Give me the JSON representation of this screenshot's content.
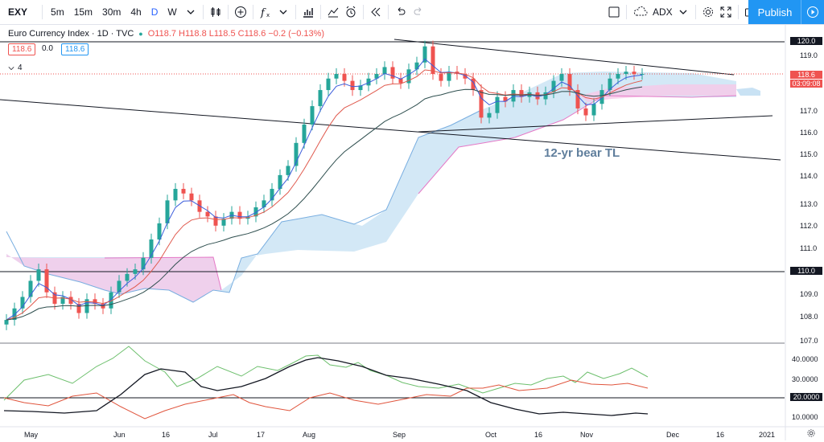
{
  "toolbar": {
    "symbol": "EXY",
    "intervals": [
      "5m",
      "15m",
      "30m",
      "4h",
      "D",
      "W"
    ],
    "active_interval": "D",
    "adx_label": "ADX",
    "publish_label": "Publish"
  },
  "legend": {
    "title": "Euro Currency Index · 1D · TVC",
    "ohlc": "O118.7 H118.8 L118.5 C118.6 −0.2 (−0.13%)",
    "val1": "118.6",
    "val2": "0.0",
    "val3": "118.6",
    "collapse": "4"
  },
  "annotation": "12-yr bear TL",
  "price_axis": {
    "labels": [
      "120.0",
      "119.0",
      "117.0",
      "116.0",
      "115.0",
      "114.0",
      "113.0",
      "112.0",
      "111.0",
      "110.0",
      "109.0",
      "108.0",
      "107.0"
    ],
    "current_price": "118.6",
    "countdown": "03:09:08"
  },
  "indicator_axis": {
    "labels": [
      "40.0000",
      "30.0000",
      "20.0000",
      "10.0000"
    ]
  },
  "time_axis": {
    "labels": [
      "May",
      "Jun",
      "16",
      "Jul",
      "17",
      "Aug",
      "Sep",
      "Oct",
      "16",
      "Nov",
      "Dec",
      "16",
      "2021"
    ]
  },
  "colors": {
    "up": "#26a69a",
    "down": "#ef5350",
    "accent": "#2196f3",
    "cloud_up": "#b3d4ee",
    "cloud_down": "#f8c8e8"
  },
  "chart_data": {
    "type": "candlestick",
    "title": "Euro Currency Index · 1D · TVC",
    "ylim": [
      107,
      120.4
    ],
    "close": [
      107.9,
      108.4,
      108.9,
      109.6,
      110.1,
      109.1,
      108.6,
      108.9,
      108.6,
      108.2,
      108.8,
      108.6,
      108.4,
      109.1,
      109.6,
      109.9,
      110.1,
      110.6,
      111.4,
      112.1,
      113.1,
      113.6,
      113.4,
      113.1,
      112.6,
      112.4,
      112.0,
      112.3,
      112.6,
      112.3,
      112.4,
      112.8,
      113.1,
      113.6,
      114.2,
      114.6,
      115.6,
      116.4,
      117.2,
      117.9,
      118.4,
      118.6,
      118.3,
      117.9,
      118.1,
      118.4,
      118.6,
      118.9,
      118.4,
      118.2,
      118.8,
      119.1,
      119.8,
      118.6,
      118.3,
      118.7,
      118.6,
      118.4,
      117.9,
      116.7,
      116.9,
      117.6,
      117.4,
      117.9,
      117.6,
      117.8,
      117.5,
      117.8,
      118.3,
      118.6,
      117.9,
      117.1,
      116.8,
      117.3,
      117.9,
      118.4,
      118.6,
      118.7,
      118.6,
      118.6
    ],
    "annotations": [
      "12-yr bear TL"
    ],
    "indicator": {
      "name": "ADX",
      "ylim": [
        7,
        46
      ],
      "level": 20
    }
  }
}
